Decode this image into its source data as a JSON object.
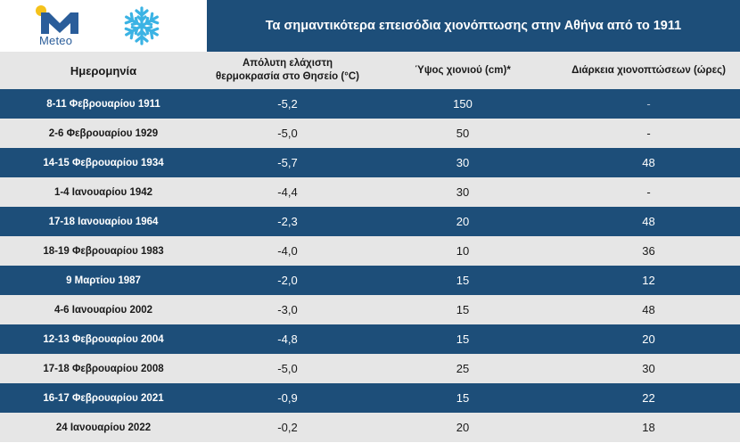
{
  "brand": {
    "name": "Meteo",
    "accent": "#1d4e79",
    "logo_blue": "#2a5d9a",
    "logo_yellow": "#f5c21b",
    "snow_color": "#3bb3e4"
  },
  "title": "Τα σημαντικότερα επεισόδια χιονόπτωσης στην Αθήνα από το 1911",
  "table": {
    "headers": [
      "Ημερομηνία",
      "Απόλυτη ελάχιστη θερμοκρασία στο Θησείο (°C)",
      "Ύψος χιονιού (cm)*",
      "Διάρκεια χιονοπτώσεων (ώρες)"
    ],
    "rows": [
      [
        "8-11 Φεβρουαρίου 1911",
        "-5,2",
        "150",
        "-"
      ],
      [
        "2-6 Φεβρουαρίου 1929",
        "-5,0",
        "50",
        "-"
      ],
      [
        "14-15 Φεβρουαρίου 1934",
        "-5,7",
        "30",
        "48"
      ],
      [
        "1-4 Ιανουαρίου 1942",
        "-4,4",
        "30",
        "-"
      ],
      [
        "17-18 Ιανουαρίου 1964",
        "-2,3",
        "20",
        "48"
      ],
      [
        "18-19 Φεβρουαρίου 1983",
        "-4,0",
        "10",
        "36"
      ],
      [
        "9 Μαρτίου 1987",
        "-2,0",
        "15",
        "12"
      ],
      [
        "4-6 Ιανουαρίου 2002",
        "-3,0",
        "15",
        "48"
      ],
      [
        "12-13 Φεβρουαρίου 2004",
        "-4,8",
        "15",
        "20"
      ],
      [
        "17-18 Φεβρουαρίου 2008",
        "-5,0",
        "25",
        "30"
      ],
      [
        "16-17 Φεβρουαρίου 2021",
        "-0,9",
        "15",
        "22"
      ],
      [
        "24 Ιανουαρίου 2022",
        "-0,2",
        "20",
        "18"
      ]
    ]
  }
}
